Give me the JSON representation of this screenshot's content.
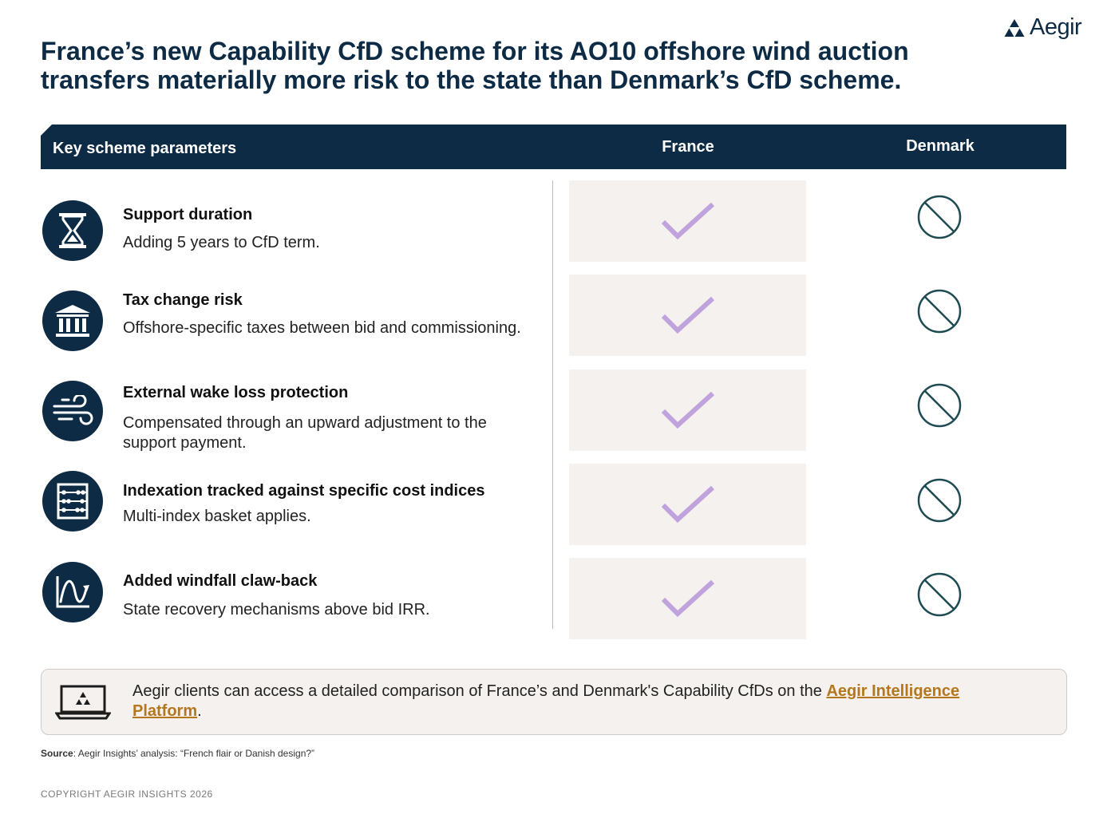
{
  "brand": {
    "name": "Aegir",
    "logo_icon": "aegir-triangle-logo"
  },
  "title": {
    "line1": "France’s new Capability CfD scheme for its AO10 offshore wind auction",
    "line2": "transfers materially more risk to the state than Denmark’s CfD scheme."
  },
  "table": {
    "headers": {
      "parameters": "Key scheme parameters",
      "france": "France",
      "denmark": "Denmark"
    },
    "rows": [
      {
        "title": "Support duration",
        "description": "Adding 5 years to CfD term.",
        "icon": "hourglass-icon",
        "france": "check",
        "denmark": "not-applicable"
      },
      {
        "title": "Tax change risk",
        "description": "Offshore-specific taxes between bid and commissioning.",
        "icon": "government-building-icon",
        "france": "check",
        "denmark": "not-applicable"
      },
      {
        "title": "External wake loss protection",
        "description": "Compensated through an upward adjustment to the support payment.",
        "icon": "wind-icon",
        "france": "check",
        "denmark": "not-applicable"
      },
      {
        "title": "Indexation tracked against specific cost indices",
        "description": "Multi-index basket applies.",
        "icon": "abacus-icon",
        "france": "check",
        "denmark": "not-applicable"
      },
      {
        "title": "Added windfall claw-back",
        "description": "State recovery mechanisms above bid IRR.",
        "icon": "chart-curve-icon",
        "france": "check",
        "denmark": "not-applicable"
      }
    ]
  },
  "callout": {
    "text": "Aegir clients can access a detailed comparison of France’s and Denmark's Capability CfDs on the ",
    "link_text": "Aegir Intelligence Platform",
    "suffix": ".",
    "icon": "laptop-icon"
  },
  "source": {
    "label": "Source",
    "text": ": Aegir Insights’ analysis: “French flair or Danish design?”"
  },
  "copyright": "COPYRIGHT AEGIR INSIGHTS 2026",
  "colors": {
    "navy": "#0d2b45",
    "check": "#c0a3dc",
    "cell_bg": "#f5f1ee",
    "link": "#b5771d",
    "denmark_symbol": "#1e4a52"
  }
}
